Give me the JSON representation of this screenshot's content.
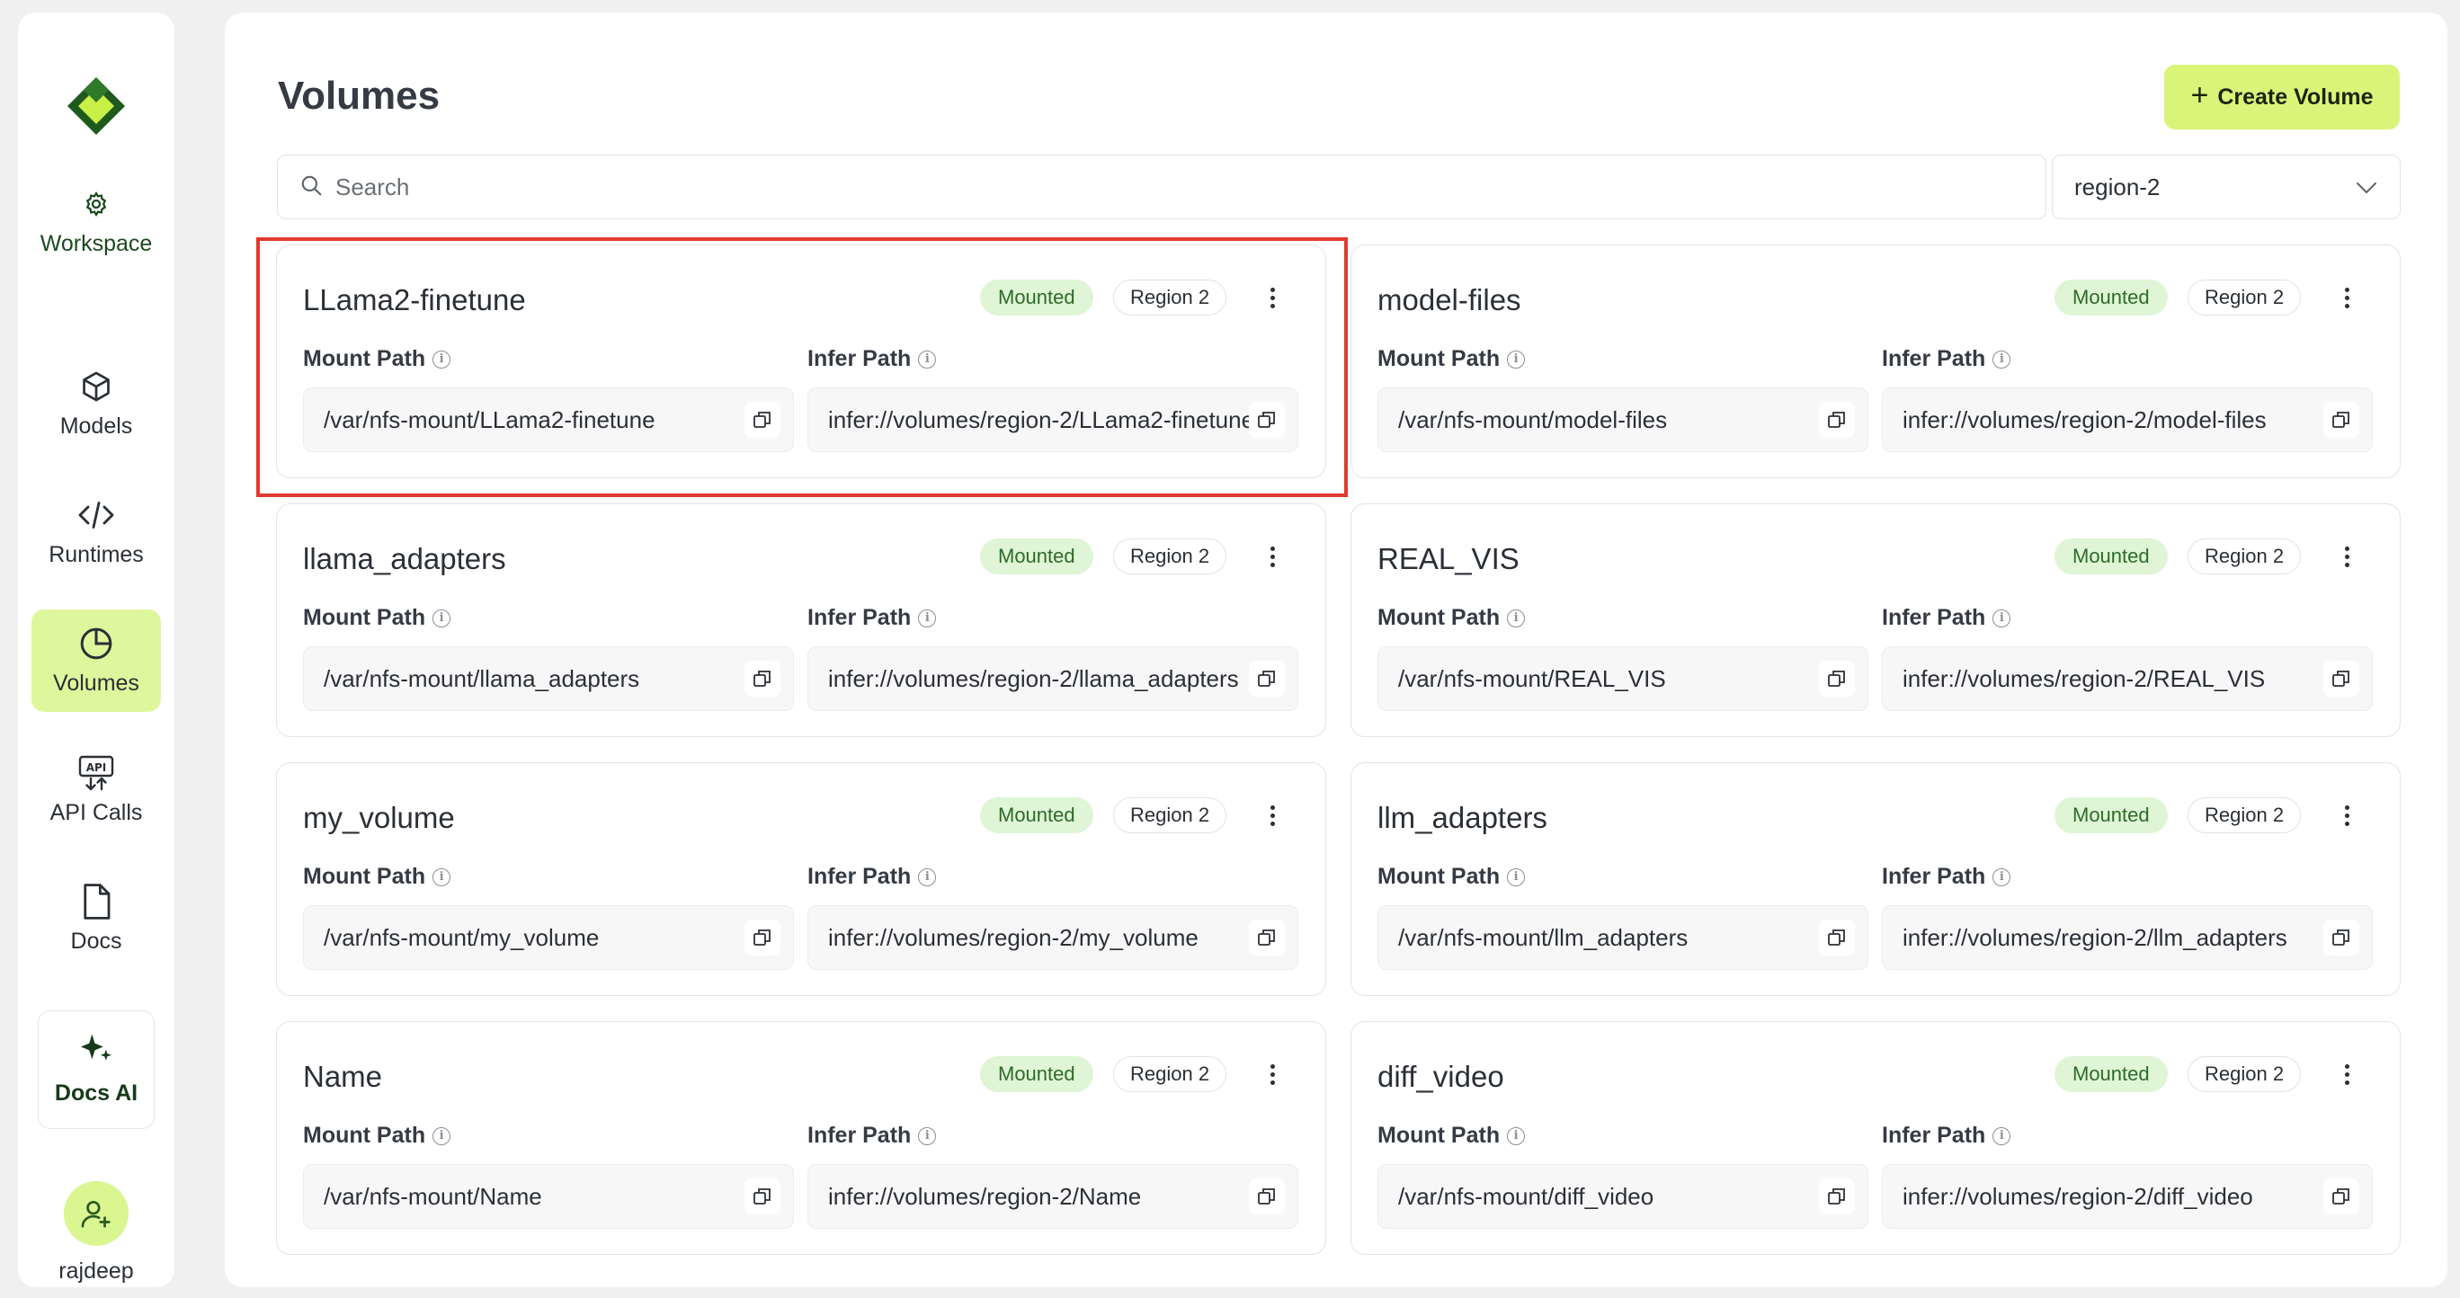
{
  "sidebar": {
    "workspace_label": "Workspace",
    "items": [
      {
        "label": "Models",
        "icon": "cube-icon"
      },
      {
        "label": "Runtimes",
        "icon": "code-icon"
      },
      {
        "label": "Volumes",
        "icon": "pie-chart-icon",
        "active": true
      },
      {
        "label": "API Calls",
        "icon": "api-icon"
      },
      {
        "label": "Docs",
        "icon": "document-icon"
      }
    ],
    "docs_ai_label": "Docs AI",
    "user_name": "rajdeep"
  },
  "header": {
    "title": "Volumes",
    "create_button_label": "Create Volume",
    "create_button_icon": "+"
  },
  "search": {
    "placeholder": "Search",
    "value": ""
  },
  "region_select": {
    "selected": "region-2"
  },
  "labels": {
    "mount_path": "Mount Path",
    "infer_path": "Infer Path"
  },
  "volumes": [
    {
      "name": "LLama2-finetune",
      "status": "Mounted",
      "region": "Region 2",
      "mount_path": "/var/nfs-mount/LLama2-finetune",
      "infer_path": "infer://volumes/region-2/LLama2-finetune"
    },
    {
      "name": "model-files",
      "status": "Mounted",
      "region": "Region 2",
      "mount_path": "/var/nfs-mount/model-files",
      "infer_path": "infer://volumes/region-2/model-files"
    },
    {
      "name": "llama_adapters",
      "status": "Mounted",
      "region": "Region 2",
      "mount_path": "/var/nfs-mount/llama_adapters",
      "infer_path": "infer://volumes/region-2/llama_adapters"
    },
    {
      "name": "REAL_VIS",
      "status": "Mounted",
      "region": "Region 2",
      "mount_path": "/var/nfs-mount/REAL_VIS",
      "infer_path": "infer://volumes/region-2/REAL_VIS"
    },
    {
      "name": "my_volume",
      "status": "Mounted",
      "region": "Region 2",
      "mount_path": "/var/nfs-mount/my_volume",
      "infer_path": "infer://volumes/region-2/my_volume"
    },
    {
      "name": "llm_adapters",
      "status": "Mounted",
      "region": "Region 2",
      "mount_path": "/var/nfs-mount/llm_adapters",
      "infer_path": "infer://volumes/region-2/llm_adapters"
    },
    {
      "name": "Name",
      "status": "Mounted",
      "region": "Region 2",
      "mount_path": "/var/nfs-mount/Name",
      "infer_path": "infer://volumes/region-2/Name"
    },
    {
      "name": "diff_video",
      "status": "Mounted",
      "region": "Region 2",
      "mount_path": "/var/nfs-mount/diff_video",
      "infer_path": "infer://volumes/region-2/diff_video"
    }
  ],
  "colors": {
    "accent": "#d9f579",
    "active_nav": "#def79d",
    "mounted_bg": "#dff5d6",
    "mounted_text": "#2e6b2a",
    "highlight": "#e03a2f"
  }
}
